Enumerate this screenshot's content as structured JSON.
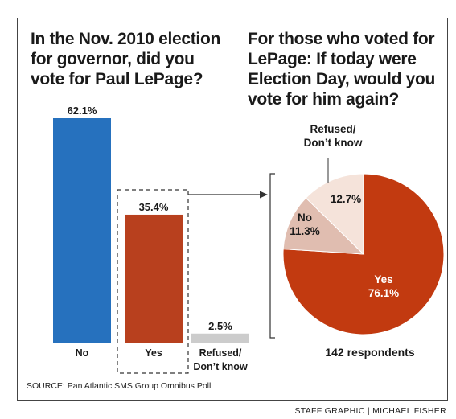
{
  "headlines": {
    "left": "In the Nov. 2010 election\nfor governor, did you\nvote for Paul LePage?",
    "right": "For those who voted for\nLePage: If today were\nElection Day, would you\nvote for him again?"
  },
  "chart_data": [
    {
      "type": "bar",
      "categories": [
        "No",
        "Yes",
        "Refused/\nDon’t know"
      ],
      "values": [
        62.1,
        35.4,
        2.5
      ],
      "value_labels": [
        "62.1%",
        "35.4%",
        "2.5%"
      ],
      "colors": [
        "#2671be",
        "#b8401e",
        "#cccccc"
      ],
      "ylim": [
        0,
        62.1
      ],
      "grid": false
    },
    {
      "type": "pie",
      "slices": [
        {
          "label": "Yes",
          "value": 76.1,
          "value_label": "76.1%",
          "color": "#c23a10"
        },
        {
          "label": "No",
          "value": 11.3,
          "value_label": "11.3%",
          "color": "#e0bdb0"
        },
        {
          "label": "Refused/\nDon’t know",
          "value": 12.7,
          "value_label": "12.7%",
          "color": "#f5e3da"
        }
      ],
      "caption": "142 respondents"
    }
  ],
  "source": "SOURCE: Pan Atlantic SMS Group Omnibus Poll",
  "credit": "STAFF GRAPHIC | MICHAEL FISHER"
}
